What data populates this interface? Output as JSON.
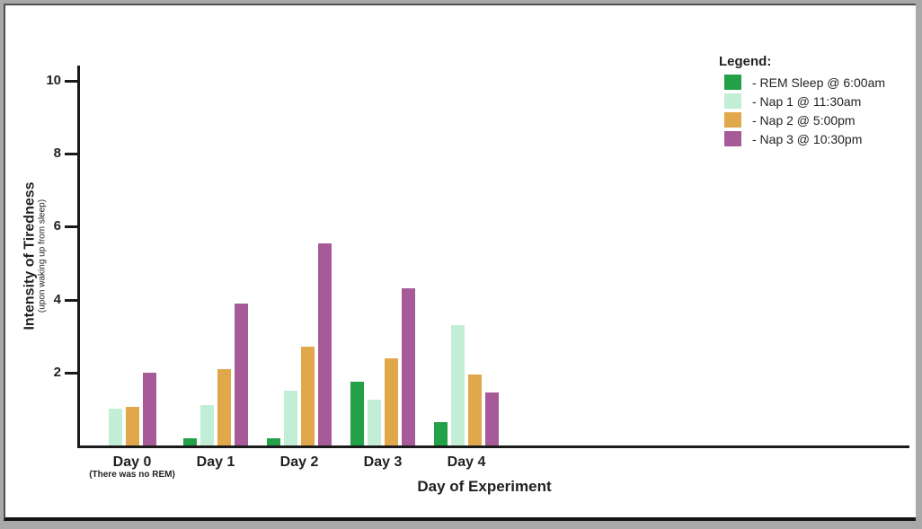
{
  "colors": {
    "text": "#231f20",
    "axis": "#1a1a1a",
    "frame_outer_gray": "#a8a8a8",
    "frame_inner_dark": "#4f4f4f",
    "frame_bottom_black": "#141414",
    "background": "#ffffff"
  },
  "legend": {
    "title": "Legend:",
    "items": [
      {
        "label": "- REM Sleep @ 6:00am",
        "color": "#23a148"
      },
      {
        "label": "- Nap 1 @ 11:30am",
        "color": "#c2eed6"
      },
      {
        "label": "- Nap 2 @ 5:00pm",
        "color": "#e0a74b"
      },
      {
        "label": "- Nap 3 @ 10:30pm",
        "color": "#a65b98"
      }
    ]
  },
  "chart_data": {
    "type": "bar",
    "title": "",
    "xlabel": "Day of Experiment",
    "ylabel": "Intensity of Tiredness",
    "ylabel_note": "(upon waking up from sleep)",
    "categories": [
      "Day 0",
      "Day 1",
      "Day 2",
      "Day 3",
      "Day 4"
    ],
    "category_notes": [
      "(There was no REM)",
      "",
      "",
      "",
      ""
    ],
    "series": [
      {
        "name": "REM Sleep @ 6:00am",
        "color": "#23a148",
        "values": [
          null,
          0.2,
          0.2,
          1.75,
          0.65
        ]
      },
      {
        "name": "Nap 1 @ 11:30am",
        "color": "#c2eed6",
        "values": [
          1.0,
          1.1,
          1.5,
          1.25,
          3.3
        ]
      },
      {
        "name": "Nap 2 @ 5:00pm",
        "color": "#e0a74b",
        "values": [
          1.05,
          2.1,
          2.7,
          2.4,
          1.95
        ]
      },
      {
        "name": "Nap 3 @ 10:30pm",
        "color": "#a65b98",
        "values": [
          2.0,
          3.9,
          5.55,
          4.3,
          1.45
        ]
      }
    ],
    "ylim": [
      0,
      10
    ],
    "yticks": [
      2,
      4,
      6,
      8,
      10
    ],
    "grid": false,
    "legend_position": "top-right"
  }
}
